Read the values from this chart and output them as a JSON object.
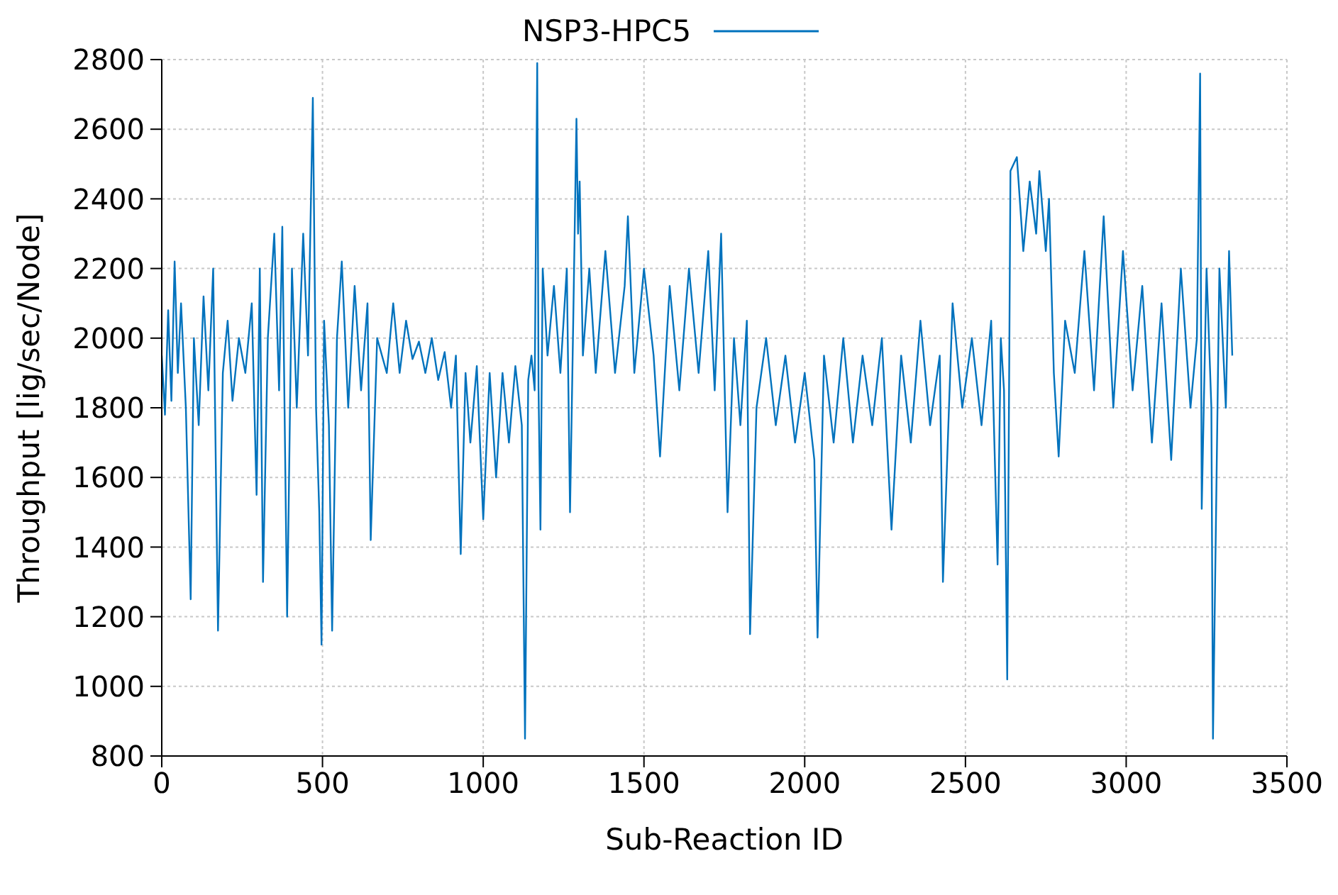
{
  "chart_data": {
    "type": "line",
    "xlabel": "Sub-Reaction ID",
    "ylabel": "Throughput [lig/sec/Node]",
    "xlim": [
      0,
      3500
    ],
    "xticks": [
      0,
      500,
      1000,
      1500,
      2000,
      2500,
      3000,
      3500
    ],
    "ylim": [
      800,
      2800
    ],
    "yticks": [
      800,
      1000,
      1200,
      1400,
      1600,
      1800,
      2000,
      2200,
      2400,
      2600,
      2800
    ],
    "grid": true,
    "legend": "top",
    "line_style": "solid",
    "marker": "none",
    "series": [
      {
        "name": "NSP3-HPC5",
        "color": "#0072bd",
        "x": [
          0,
          10,
          20,
          30,
          40,
          50,
          60,
          75,
          90,
          100,
          115,
          130,
          145,
          160,
          175,
          190,
          205,
          220,
          240,
          260,
          280,
          295,
          305,
          315,
          330,
          350,
          365,
          375,
          390,
          405,
          420,
          440,
          455,
          470,
          480,
          490,
          497,
          505,
          520,
          530,
          545,
          560,
          580,
          600,
          620,
          640,
          650,
          670,
          700,
          720,
          740,
          760,
          780,
          800,
          820,
          840,
          860,
          880,
          900,
          915,
          930,
          945,
          960,
          980,
          1000,
          1020,
          1040,
          1060,
          1080,
          1100,
          1120,
          1130,
          1140,
          1150,
          1160,
          1168,
          1172,
          1178,
          1185,
          1200,
          1220,
          1240,
          1260,
          1270,
          1280,
          1290,
          1295,
          1300,
          1310,
          1330,
          1350,
          1380,
          1410,
          1440,
          1450,
          1470,
          1500,
          1530,
          1550,
          1580,
          1610,
          1640,
          1670,
          1700,
          1720,
          1740,
          1760,
          1780,
          1800,
          1820,
          1830,
          1850,
          1880,
          1910,
          1940,
          1970,
          2000,
          2030,
          2040,
          2060,
          2090,
          2120,
          2150,
          2180,
          2210,
          2240,
          2270,
          2300,
          2330,
          2360,
          2390,
          2420,
          2430,
          2460,
          2490,
          2520,
          2550,
          2580,
          2600,
          2610,
          2620,
          2630,
          2640,
          2660,
          2680,
          2700,
          2720,
          2730,
          2750,
          2760,
          2775,
          2790,
          2810,
          2840,
          2870,
          2900,
          2930,
          2960,
          2990,
          3020,
          3050,
          3080,
          3110,
          3140,
          3170,
          3200,
          3220,
          3230,
          3235,
          3250,
          3265,
          3270,
          3290,
          3310,
          3320,
          3330
        ],
        "values": [
          1950,
          1780,
          2080,
          1820,
          2220,
          1900,
          2100,
          1800,
          1250,
          2000,
          1750,
          2120,
          1850,
          2200,
          1160,
          1900,
          2050,
          1820,
          2000,
          1900,
          2100,
          1550,
          2200,
          1300,
          2000,
          2300,
          1850,
          2320,
          1200,
          2200,
          1800,
          2300,
          1950,
          2690,
          1800,
          1500,
          1120,
          2050,
          1750,
          1160,
          2000,
          2220,
          1800,
          2150,
          1850,
          2100,
          1420,
          2000,
          1900,
          2100,
          1900,
          2050,
          1940,
          1990,
          1900,
          2000,
          1880,
          1960,
          1800,
          1950,
          1380,
          1900,
          1700,
          1920,
          1480,
          1900,
          1600,
          1900,
          1700,
          1920,
          1750,
          850,
          1880,
          1950,
          1850,
          2790,
          1860,
          1450,
          2200,
          1950,
          2150,
          1900,
          2200,
          1500,
          2050,
          2630,
          2300,
          2450,
          1950,
          2200,
          1900,
          2250,
          1900,
          2150,
          2350,
          1900,
          2200,
          1950,
          1660,
          2150,
          1850,
          2200,
          1900,
          2250,
          1850,
          2300,
          1500,
          2000,
          1750,
          2050,
          1150,
          1800,
          2000,
          1750,
          1950,
          1700,
          1900,
          1650,
          1140,
          1950,
          1700,
          2000,
          1700,
          1950,
          1750,
          2000,
          1450,
          1950,
          1700,
          2050,
          1750,
          1950,
          1300,
          2100,
          1800,
          2000,
          1750,
          2050,
          1350,
          2000,
          1850,
          1020,
          2480,
          2520,
          2250,
          2450,
          2300,
          2480,
          2250,
          2400,
          1900,
          1660,
          2050,
          1900,
          2250,
          1850,
          2350,
          1800,
          2250,
          1850,
          2150,
          1700,
          2100,
          1650,
          2200,
          1800,
          2000,
          2760,
          1510,
          2200,
          1800,
          850,
          2200,
          1800,
          2250,
          1950
        ]
      }
    ]
  }
}
